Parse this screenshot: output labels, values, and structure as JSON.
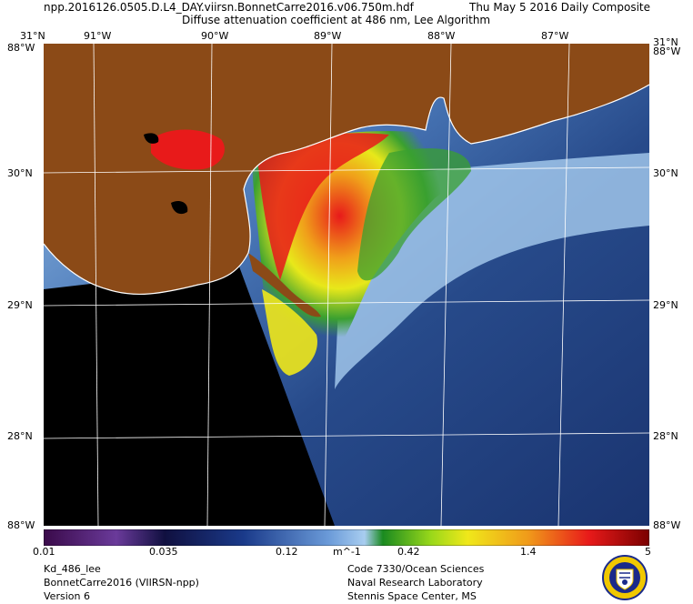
{
  "header": {
    "filename": "npp.2016126.0505.D.L4_DAY.viirsn.BonnetCarre2016.v06.750m.hdf",
    "date": "Thu May  5 2016 Daily Composite",
    "product": "Diffuse attenuation coefficient at 486 nm, Lee Algorithm"
  },
  "map": {
    "lon_labels": [
      "91°W",
      "90°W",
      "89°W",
      "88°W",
      "87°W"
    ],
    "lat_labels": [
      "30°N",
      "29°N",
      "28°N"
    ],
    "corner_top": "31°N",
    "corner_side": "88°W",
    "corner_bottom": "88°W",
    "colors": {
      "land": "#8b4a17",
      "nodata": "#000000",
      "grid": "#ffffff"
    }
  },
  "colorbar": {
    "ticks": [
      "0.01",
      "0.035",
      "0.12",
      "m^-1",
      "0.42",
      "1.4",
      "5"
    ],
    "stops": [
      "#3a0a4a",
      "#5b2a82",
      "#0a1a5a",
      "#1e4a9a",
      "#7fb0e8",
      "#3aa030",
      "#f0e81a",
      "#f09a1a",
      "#e81a1a",
      "#7a0000"
    ]
  },
  "footer": {
    "left": [
      "Kd_486_lee",
      "BonnetCarre2016 (VIIRSN-npp)",
      "Version 6"
    ],
    "right": [
      "Code 7330/Ocean Sciences",
      "Naval Research Laboratory",
      "Stennis Space Center, MS"
    ],
    "seal": "naval-research-laboratory-seal"
  }
}
